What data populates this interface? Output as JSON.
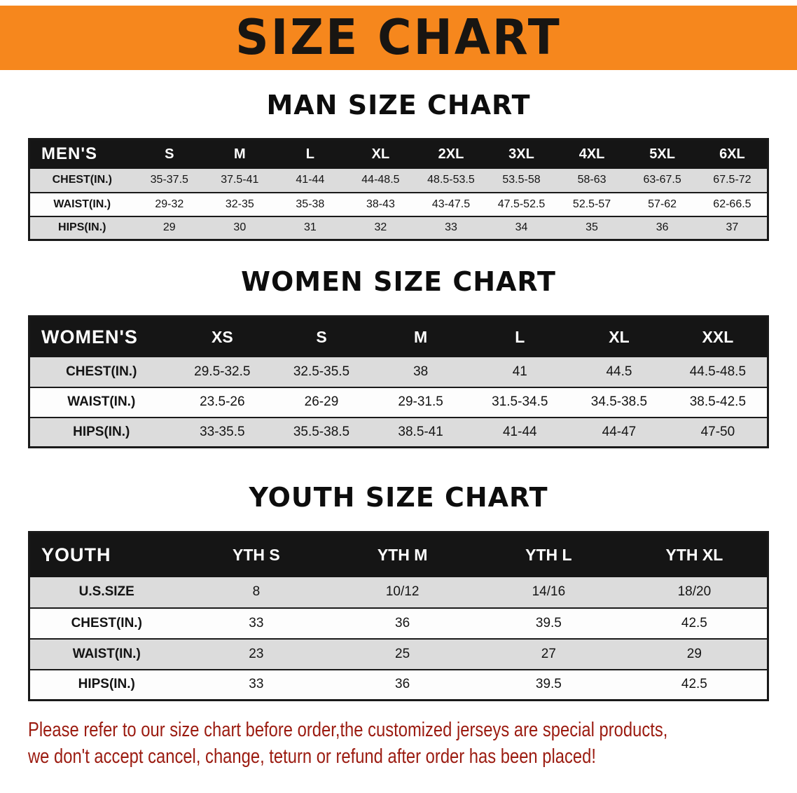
{
  "banner": {
    "title": "SIZE CHART"
  },
  "colors": {
    "banner-bg": "#F6871D",
    "banner-text": "#181512",
    "header-bg": "#151515",
    "header-text": "#FFFFFF",
    "row-shade": "#DCDCDC",
    "row-plain": "#FDFDFD",
    "border-color": "#1A1A1A",
    "note-color": "#9B1B10"
  },
  "sections": [
    {
      "id": "men",
      "heading": "MAN SIZE CHART",
      "table": {
        "title": "MEN'S",
        "header": [
          "MEN'S",
          "S",
          "M",
          "L",
          "XL",
          "2XL",
          "3XL",
          "4XL",
          "5XL",
          "6XL"
        ],
        "rows": [
          [
            "CHEST(IN.)",
            "35-37.5",
            "37.5-41",
            "41-44",
            "44-48.5",
            "48.5-53.5",
            "53.5-58",
            "58-63",
            "63-67.5",
            "67.5-72"
          ],
          [
            "WAIST(IN.)",
            "29-32",
            "32-35",
            "35-38",
            "38-43",
            "43-47.5",
            "47.5-52.5",
            "52.5-57",
            "57-62",
            "62-66.5"
          ],
          [
            "HIPS(IN.)",
            "29",
            "30",
            "31",
            "32",
            "33",
            "34",
            "35",
            "36",
            "37"
          ]
        ]
      }
    },
    {
      "id": "women",
      "heading": "WOMEN SIZE CHART",
      "table": {
        "title": "WOMEN'S",
        "header": [
          "WOMEN'S",
          "XS",
          "S",
          "M",
          "L",
          "XL",
          "XXL"
        ],
        "rows": [
          [
            "CHEST(IN.)",
            "29.5-32.5",
            "32.5-35.5",
            "38",
            "41",
            "44.5",
            "44.5-48.5"
          ],
          [
            "WAIST(IN.)",
            "23.5-26",
            "26-29",
            "29-31.5",
            "31.5-34.5",
            "34.5-38.5",
            "38.5-42.5"
          ],
          [
            "HIPS(IN.)",
            "33-35.5",
            "35.5-38.5",
            "38.5-41",
            "41-44",
            "44-47",
            "47-50"
          ]
        ]
      }
    },
    {
      "id": "youth",
      "heading": "YOUTH SIZE CHART",
      "table": {
        "title": "YOUTH",
        "header": [
          "YOUTH",
          "YTH S",
          "YTH M",
          "YTH L",
          "YTH XL"
        ],
        "rows": [
          [
            "U.S.SIZE",
            "8",
            "10/12",
            "14/16",
            "18/20"
          ],
          [
            "CHEST(IN.)",
            "33",
            "36",
            "39.5",
            "42.5"
          ],
          [
            "WAIST(IN.)",
            "23",
            "25",
            "27",
            "29"
          ],
          [
            "HIPS(IN.)",
            "33",
            "36",
            "39.5",
            "42.5"
          ]
        ]
      }
    }
  ],
  "note": {
    "line1": "Please refer to our size chart before order,the customized jerseys are special products,",
    "line2": "we don't accept cancel, change, teturn or refund after order has been placed!"
  }
}
